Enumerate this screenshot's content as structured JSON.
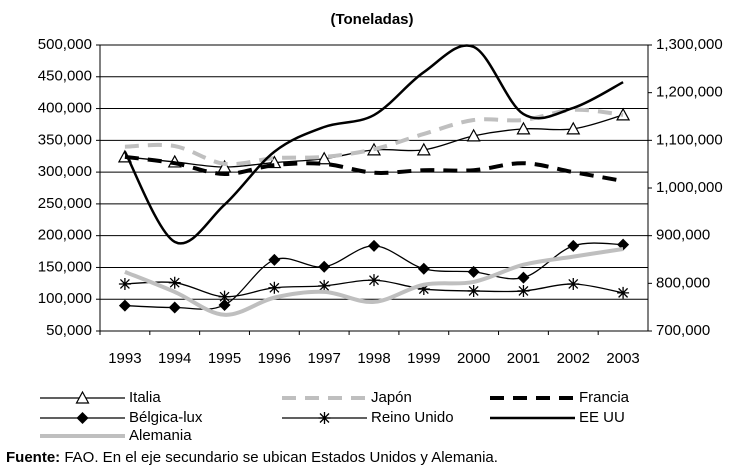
{
  "chart_data": {
    "type": "line",
    "title": "(Toneladas)",
    "categories": [
      "1993",
      "1994",
      "1995",
      "1996",
      "1997",
      "1998",
      "1999",
      "2000",
      "2001",
      "2002",
      "2003"
    ],
    "ylim": [
      50000,
      500000
    ],
    "yticks": [
      {
        "value": 50000,
        "label": "50,000"
      },
      {
        "value": 100000,
        "label": "100,000"
      },
      {
        "value": 150000,
        "label": "150,000"
      },
      {
        "value": 200000,
        "label": "200,000"
      },
      {
        "value": 250000,
        "label": "250,000"
      },
      {
        "value": 300000,
        "label": "300,000"
      },
      {
        "value": 350000,
        "label": "350,000"
      },
      {
        "value": 400000,
        "label": "400,000"
      },
      {
        "value": 450000,
        "label": "450,000"
      },
      {
        "value": 500000,
        "label": "500,000"
      }
    ],
    "y2lim": [
      700000,
      1300000
    ],
    "y2ticks": [
      {
        "value": 700000,
        "label": "700,000"
      },
      {
        "value": 800000,
        "label": "800,000"
      },
      {
        "value": 900000,
        "label": "900,000"
      },
      {
        "value": 1000000,
        "label": "1,000,000"
      },
      {
        "value": 1100000,
        "label": "1,100,000"
      },
      {
        "value": 1200000,
        "label": "1,200,000"
      },
      {
        "value": 1300000,
        "label": "1,300,000"
      }
    ],
    "grid": true,
    "smooth": true,
    "series": [
      {
        "name": "Italia",
        "color": "#000000",
        "marker": "triangle",
        "dash": "none",
        "width": 1.3,
        "values": [
          324000,
          316000,
          308000,
          315000,
          321000,
          335000,
          335000,
          357000,
          368000,
          368000,
          390000
        ]
      },
      {
        "name": "Japón",
        "color": "#bfbfbf",
        "marker": "none",
        "dash": "dash",
        "width": 4,
        "values": [
          340000,
          341000,
          313000,
          322000,
          324000,
          336000,
          360000,
          382000,
          382000,
          398000,
          390000
        ]
      },
      {
        "name": "Francia",
        "color": "#000000",
        "marker": "none",
        "dash": "dash",
        "width": 4,
        "values": [
          324000,
          314000,
          297000,
          311000,
          313000,
          299000,
          303000,
          303000,
          314000,
          300000,
          286000
        ]
      },
      {
        "name": "Bélgica-lux",
        "color": "#000000",
        "marker": "diamond",
        "dash": "none",
        "width": 1.3,
        "values": [
          90000,
          87000,
          91000,
          162000,
          151000,
          184000,
          148000,
          143000,
          134000,
          184000,
          186000
        ]
      },
      {
        "name": "Reino Unido",
        "color": "#000000",
        "marker": "asterisk",
        "dash": "none",
        "width": 1.3,
        "values": [
          124000,
          126000,
          104000,
          118000,
          121000,
          130000,
          116000,
          113000,
          113000,
          124000,
          110000
        ]
      },
      {
        "name": "EE UU",
        "color": "#000000",
        "marker": "none",
        "dash": "none",
        "width": 2.5,
        "axis": "y2",
        "values": [
          1076000,
          887000,
          965000,
          1076000,
          1128000,
          1153000,
          1243000,
          1296000,
          1155000,
          1168000,
          1222000
        ]
      },
      {
        "name": "Alemania",
        "color": "#bfbfbf",
        "marker": "none",
        "dash": "none",
        "width": 4,
        "axis": "y2",
        "values": [
          824000,
          782000,
          734000,
          770000,
          782000,
          761000,
          797000,
          803000,
          839000,
          856000,
          872000
        ]
      }
    ],
    "source_label": "Fuente:",
    "source_text": "FAO. En el eje secundario se ubican Estados Unidos y Alemania."
  }
}
